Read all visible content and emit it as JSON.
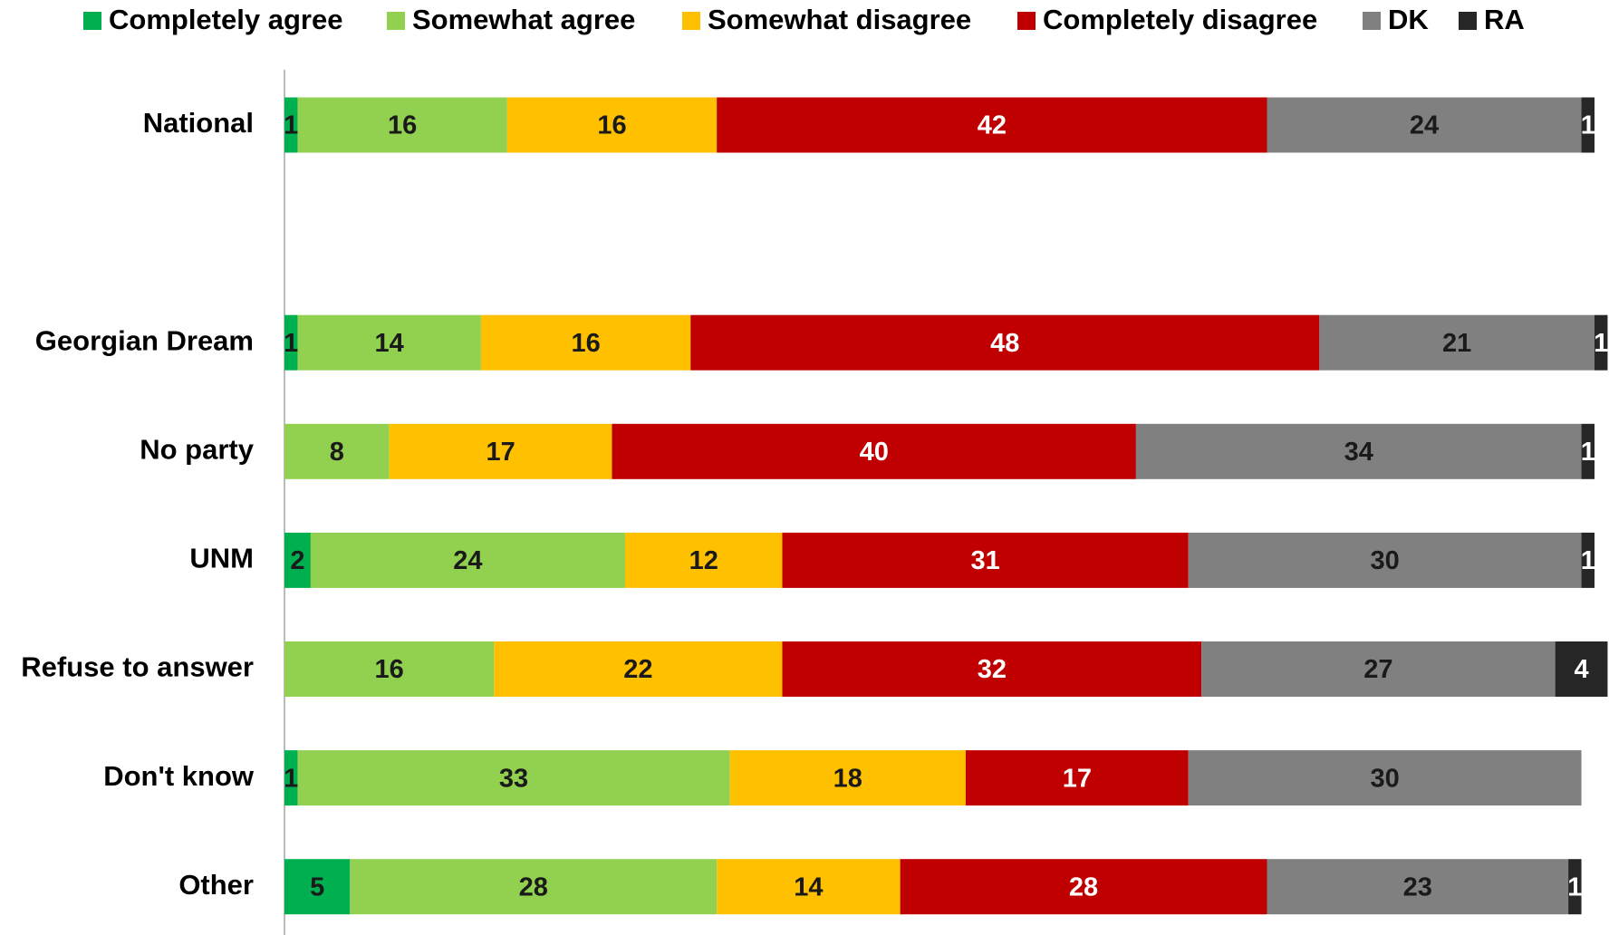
{
  "chart_data": {
    "type": "stacked-bar-horizontal",
    "categories": [
      "National",
      null,
      "Georgian Dream",
      "No party",
      "UNM",
      "Refuse to answer",
      "Don't know",
      "Other"
    ],
    "series": [
      {
        "name": "Completely agree",
        "color": "#00b050",
        "values": [
          1,
          null,
          1,
          null,
          2,
          null,
          1,
          5
        ]
      },
      {
        "name": "Somewhat agree",
        "color": "#92d050",
        "values": [
          16,
          null,
          14,
          8,
          24,
          16,
          33,
          28
        ]
      },
      {
        "name": "Somewhat disagree",
        "color": "#ffc000",
        "values": [
          16,
          null,
          16,
          17,
          12,
          22,
          18,
          14
        ]
      },
      {
        "name": "Completely disagree",
        "color": "#c00000",
        "values": [
          42,
          null,
          48,
          40,
          31,
          32,
          17,
          28
        ]
      },
      {
        "name": "DK",
        "color": "#808080",
        "values": [
          24,
          null,
          21,
          34,
          30,
          27,
          30,
          23
        ]
      },
      {
        "name": "RA",
        "color": "#262626",
        "values": [
          1,
          null,
          1,
          1,
          1,
          4,
          null,
          1
        ]
      }
    ],
    "xlim": [
      0,
      100
    ],
    "legend": "top"
  }
}
